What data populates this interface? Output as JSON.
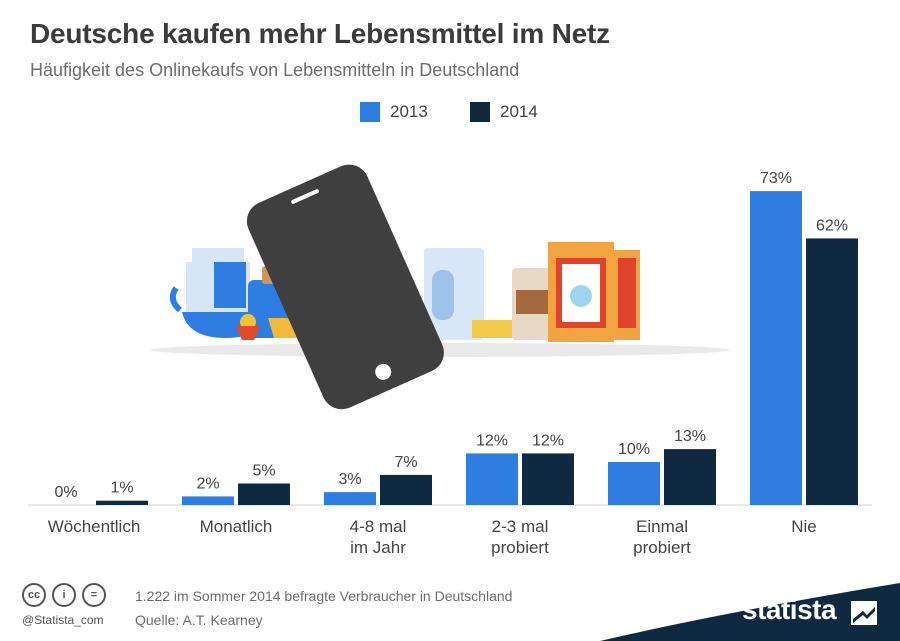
{
  "title": "Deutsche kaufen mehr Lebensmittel im Netz",
  "subtitle": "Häufigkeit des Onlinekaufs von Lebensmitteln in Deutschland",
  "footer": {
    "note": "1.222 im Sommer 2014 befragte Verbraucher in Deutschland",
    "source": "Quelle: A.T. Kearney",
    "handle": "@Statista_com",
    "brand": "statista"
  },
  "colors": {
    "series2013": "#2e7de1",
    "series2014": "#0f2a40",
    "band": "#0f2a40"
  },
  "chart_data": {
    "type": "bar",
    "categories": [
      "Wöchentlich",
      "Monatlich",
      "4-8 mal im Jahr",
      "2-3 mal probiert",
      "Einmal probiert",
      "Nie"
    ],
    "category_lines": [
      [
        "Wöchentlich"
      ],
      [
        "Monatlich"
      ],
      [
        "4-8 mal",
        "im Jahr"
      ],
      [
        "2-3 mal",
        "probiert"
      ],
      [
        "Einmal",
        "probiert"
      ],
      [
        "Nie"
      ]
    ],
    "series": [
      {
        "name": "2013",
        "values": [
          0,
          2,
          3,
          12,
          10,
          73
        ],
        "labels": [
          "0%",
          "2%",
          "3%",
          "12%",
          "10%",
          "73%"
        ]
      },
      {
        "name": "2014",
        "values": [
          1,
          5,
          7,
          12,
          13,
          62
        ],
        "labels": [
          "1%",
          "5%",
          "7%",
          "12%",
          "13%",
          "62%"
        ]
      }
    ],
    "ylim": [
      0,
      100
    ],
    "unit": "%",
    "legend": "top-center",
    "grid": false
  }
}
